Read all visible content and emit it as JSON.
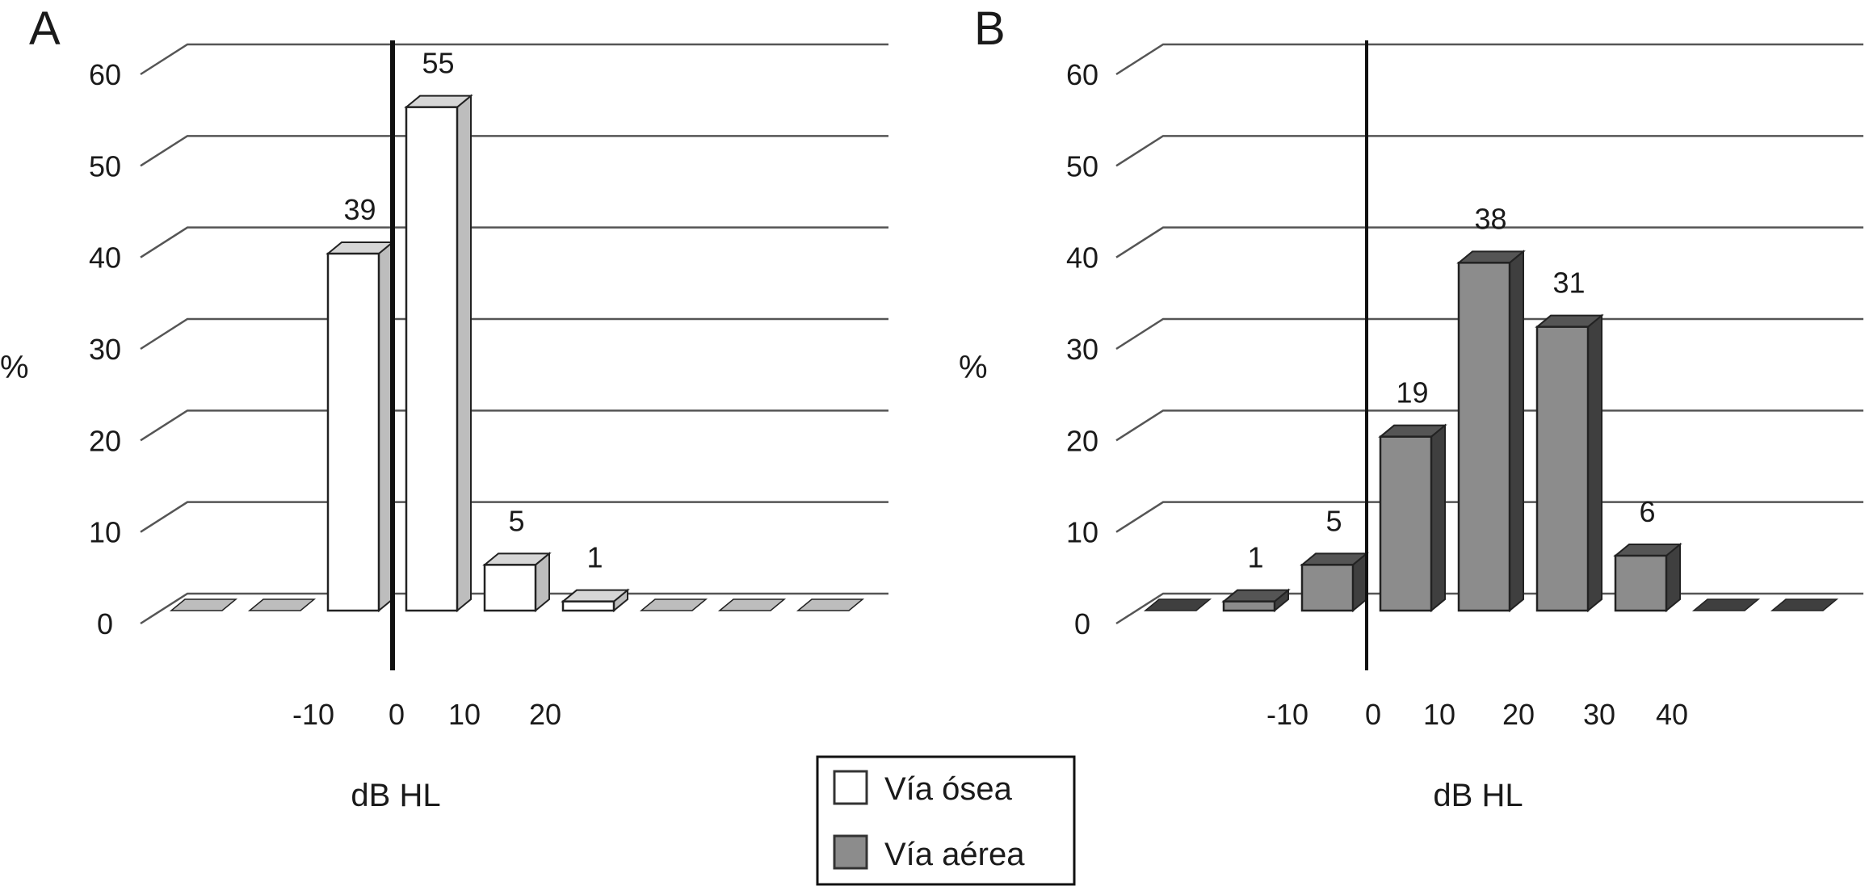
{
  "chart_data": [
    {
      "type": "bar",
      "panel_label": "A",
      "series_name": "Vía ósea",
      "ylabel": "%",
      "xlabel": "dB HL",
      "ylim": [
        0,
        60
      ],
      "y_ticks": [
        "0",
        "10",
        "20",
        "30",
        "40",
        "50",
        "60"
      ],
      "x_tick_labels": [
        "-10",
        "0",
        "10",
        "20"
      ],
      "values": [
        0,
        0,
        39,
        55,
        5,
        1,
        0,
        0,
        0
      ],
      "value_labels": [
        "",
        "",
        "39",
        "55",
        "5",
        "1",
        "",
        "",
        ""
      ],
      "grid": true,
      "zero_line_after_bar": 2
    },
    {
      "type": "bar",
      "panel_label": "B",
      "series_name": "Vía aérea",
      "ylabel": "%",
      "xlabel": "dB HL",
      "ylim": [
        0,
        60
      ],
      "y_ticks": [
        "0",
        "10",
        "20",
        "30",
        "40",
        "50",
        "60"
      ],
      "x_tick_labels": [
        "-10",
        "0",
        "10",
        "20",
        "30",
        "40"
      ],
      "values": [
        0,
        1,
        5,
        19,
        38,
        31,
        6,
        0,
        0
      ],
      "value_labels": [
        "",
        "1",
        "5",
        "19",
        "38",
        "31",
        "6",
        "",
        ""
      ],
      "grid": true,
      "zero_line_after_bar": 2
    }
  ],
  "legend": {
    "placement": "bottom-center",
    "items": [
      {
        "label": "Vía ósea",
        "color": "#ffffff"
      },
      {
        "label": "Vía aérea",
        "color": "#8c8c8c"
      }
    ]
  },
  "colors": {
    "bone_front": "#ffffff",
    "bone_side": "#bdbdbd",
    "bone_top": "#d6d6d6",
    "air_front": "#8c8c8c",
    "air_side": "#3f3f3f",
    "air_top": "#555555",
    "grid": "#555555",
    "stroke": "#222222"
  }
}
